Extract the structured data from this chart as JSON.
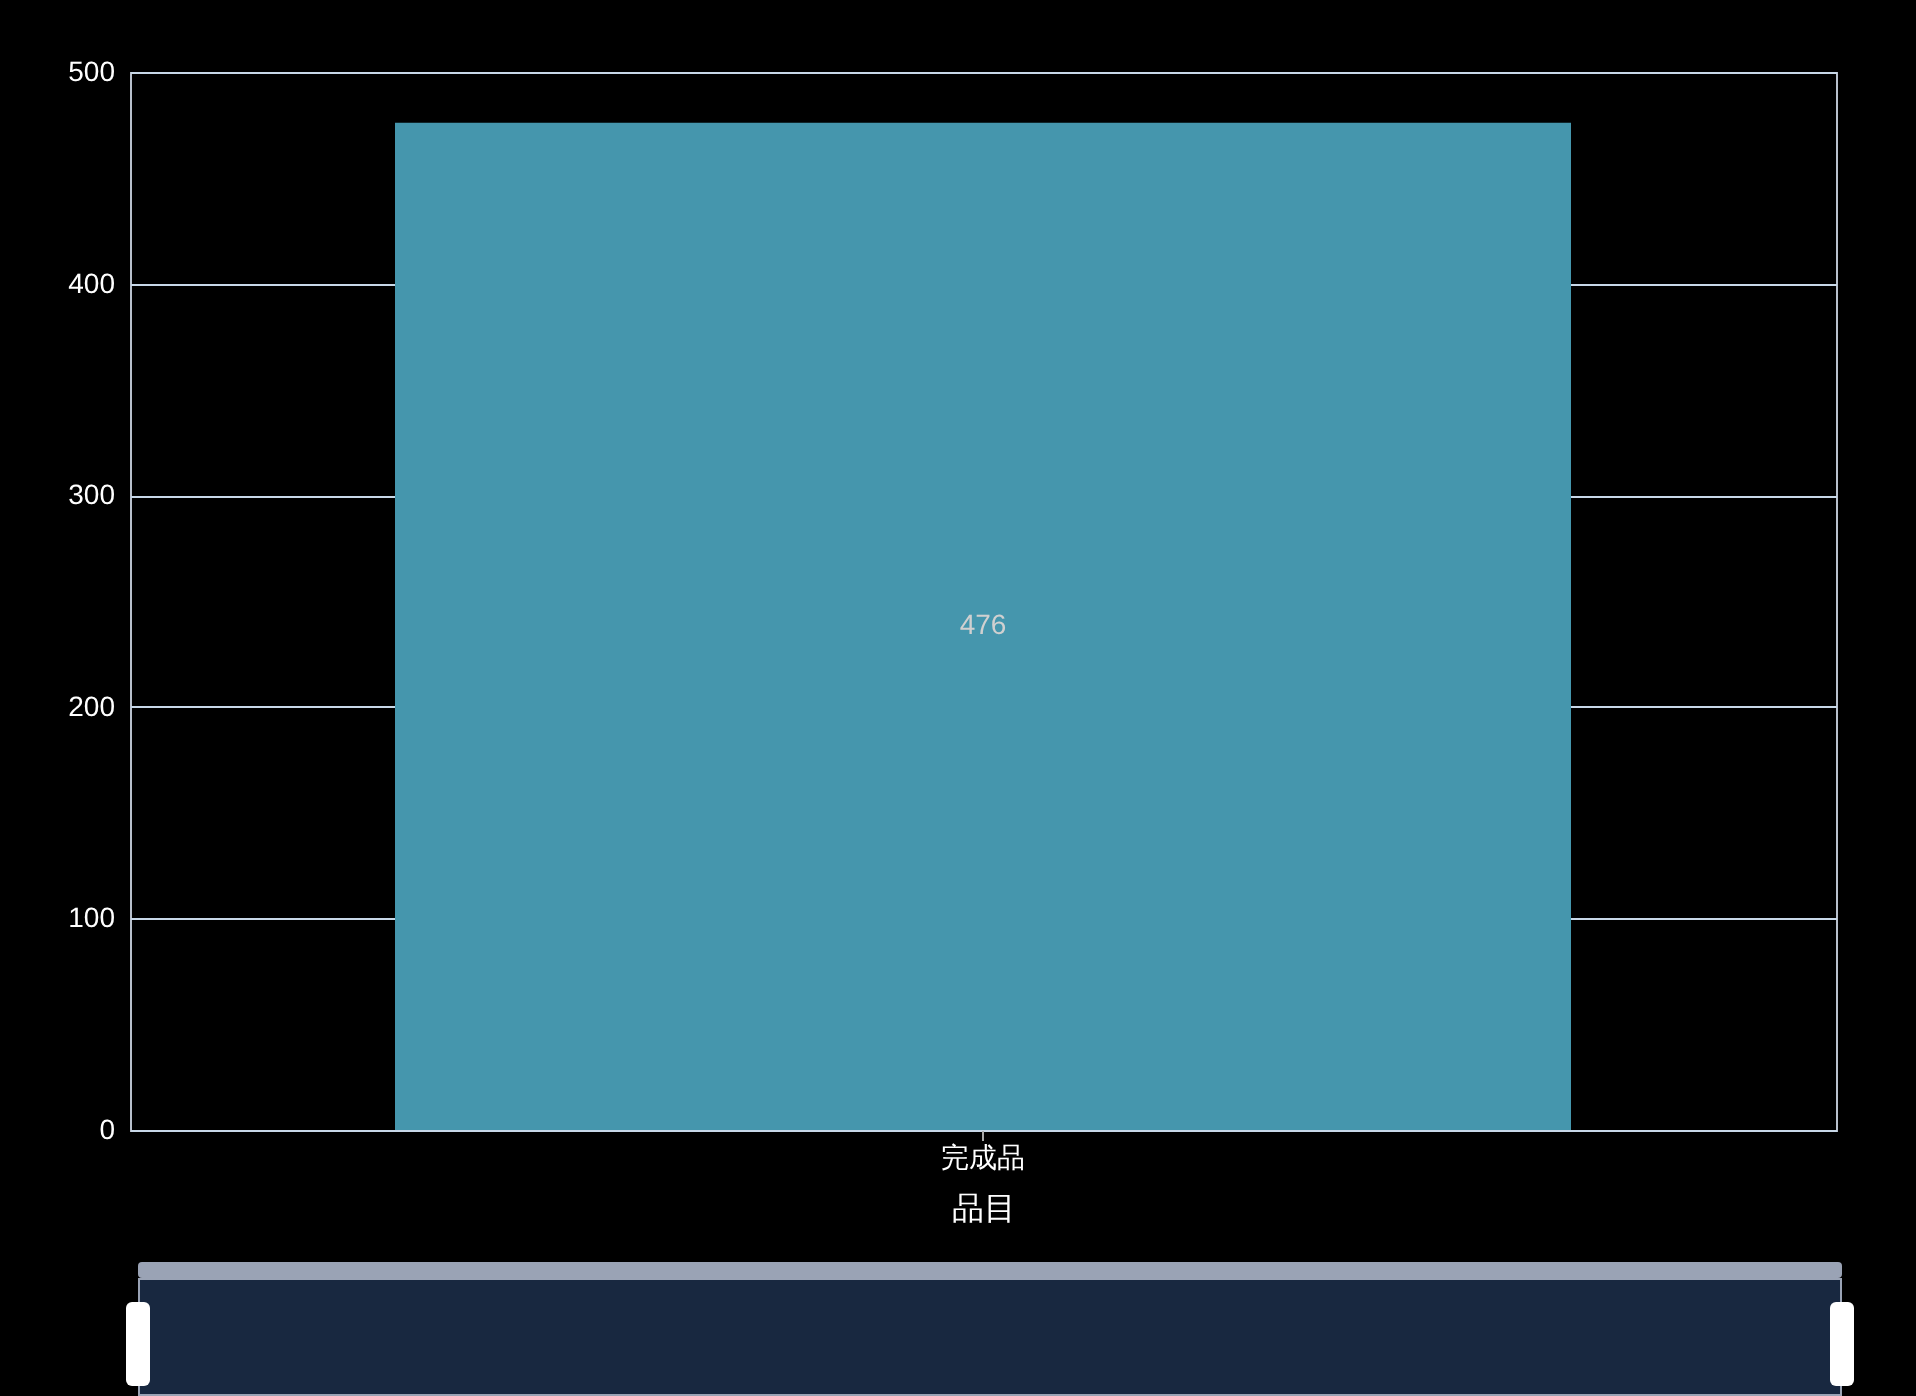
{
  "chart_data": {
    "type": "bar",
    "xlabel": "品目",
    "categories": [
      "完成品"
    ],
    "values": [
      476
    ],
    "color": "#4596ad",
    "ylim": [
      0,
      500
    ],
    "yticks": [
      0,
      100,
      200,
      300,
      400,
      500
    ],
    "grid": "y",
    "data_labels": true
  }
}
